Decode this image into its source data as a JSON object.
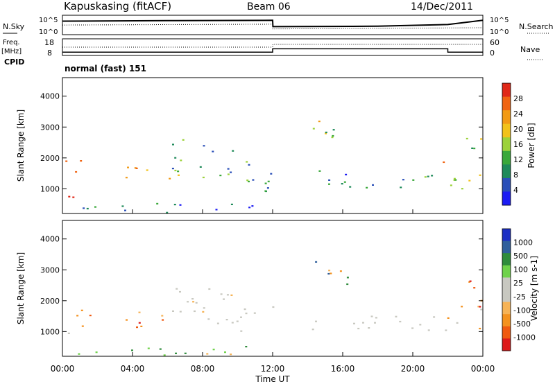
{
  "header": {
    "title": "Kapuskasing (fitACF)",
    "beam": "Beam 06",
    "date": "14/Dec/2011"
  },
  "labels": {
    "nsky": "N.Sky",
    "nsearch": "N.Search",
    "freq_line1": "Freq.",
    "freq_line2": "[MHz]",
    "nave": "Nave",
    "cpid": "CPID",
    "cpid_value": "normal (fast) 151",
    "noise_tick_hi": "10^5",
    "noise_tick_lo": "10^0",
    "freq_tick_hi": "18",
    "freq_tick_lo": "8",
    "nave_tick_hi": "60",
    "nave_tick_lo": "0"
  },
  "colors": {
    "velocity_scale": [
      "#dd1a1a",
      "#f05a10",
      "#f4921e",
      "#f6b356",
      "#c8c8c0",
      "#c8c8c0",
      "#6fd24a",
      "#2f8c3c",
      "#2f5f9c",
      "#1c2fc4"
    ],
    "power_scale": [
      "#1c1cf4",
      "#2a4fb8",
      "#1f8a5a",
      "#3aa83a",
      "#9cd23a",
      "#f2c21a",
      "#f29a14",
      "#f06412",
      "#e02818"
    ]
  },
  "chart_data": [
    {
      "type": "line",
      "title": "",
      "series": [
        {
          "name": "N.Sky",
          "style": "solid",
          "x": [
            "00:00",
            "06:00",
            "12:00",
            "12:01",
            "18:00",
            "22:00",
            "24:00"
          ],
          "values": [
            3000,
            4000,
            5000,
            120,
            150,
            400,
            5000
          ]
        },
        {
          "name": "N.Search",
          "style": "dotted",
          "x": [
            "00:00",
            "12:00",
            "12:01",
            "24:00"
          ],
          "values": [
            300,
            500,
            30,
            60
          ]
        }
      ],
      "yticks": [
        "10^0",
        "10^5"
      ],
      "ylim": [
        1,
        100000
      ],
      "log_scale": true
    },
    {
      "type": "line",
      "title": "",
      "series": [
        {
          "name": "Freq.",
          "style": "solid",
          "x": [
            "00:00",
            "12:00",
            "12:00",
            "22:00",
            "22:00",
            "24:00"
          ],
          "values": [
            10,
            10,
            12,
            12,
            10,
            10
          ]
        },
        {
          "name": "Nave",
          "style": "dotted",
          "x": [
            "00:00",
            "12:00",
            "12:01",
            "24:00"
          ],
          "values": [
            30,
            30,
            40,
            40
          ]
        }
      ],
      "ylabel": "Freq. [MHz]",
      "y2label": "Nave",
      "ylim": [
        8,
        18
      ],
      "y2lim": [
        0,
        60
      ],
      "yticks": [
        8,
        18
      ],
      "y2ticks": [
        0,
        60
      ]
    },
    {
      "type": "heatmap",
      "title": "",
      "ylabel": "Slant Range [km]",
      "xlabel": "Time UT",
      "colorbar_label": "Power [dB]",
      "colorbar_ticks": [
        4,
        8,
        12,
        16,
        20,
        24,
        28
      ],
      "ylim": [
        200,
        4600
      ],
      "yticks": [
        1000,
        2000,
        3000,
        4000
      ],
      "xticks": [
        "00:00",
        "04:00",
        "08:00",
        "12:00",
        "16:00",
        "20:00",
        "00:00"
      ]
    },
    {
      "type": "heatmap",
      "title": "",
      "ylabel": "Slant Range [km]",
      "xlabel": "Time UT",
      "colorbar_label": "Velocity [m s-1]",
      "colorbar_ticks": [
        1000,
        500,
        100,
        25,
        -25,
        -100,
        -500,
        -1000
      ],
      "ylim": [
        200,
        4600
      ],
      "yticks": [
        1000,
        2000,
        3000,
        4000
      ],
      "xticks": [
        "00:00",
        "04:00",
        "08:00",
        "12:00",
        "16:00",
        "20:00",
        "00:00"
      ]
    }
  ]
}
